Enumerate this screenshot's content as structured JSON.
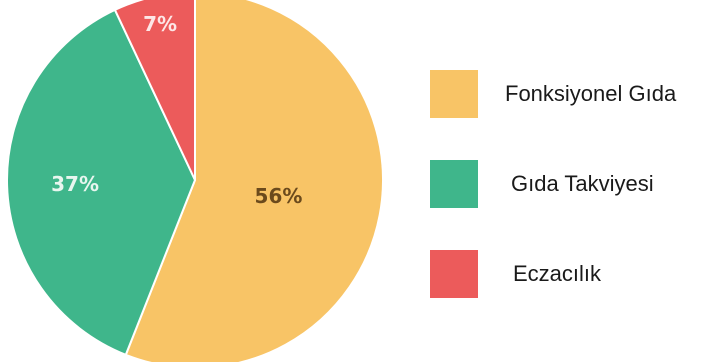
{
  "chart_data": {
    "type": "pie",
    "title": "",
    "slices": [
      {
        "label": "Fonksiyonel Gıda",
        "value": 56,
        "display": "56%",
        "color": "#F8C466",
        "label_color": "#6b4a1c"
      },
      {
        "label": "Gıda Takviyesi",
        "value": 37,
        "display": "37%",
        "color": "#3FB68B",
        "label_color": "#e8f6ef"
      },
      {
        "label": "Eczacılık",
        "value": 7,
        "display": "7%",
        "color": "#EC5B5B",
        "label_color": "#fde7e7"
      }
    ],
    "start_angle_deg": 0,
    "direction": "clockwise",
    "legend_position": "right"
  }
}
